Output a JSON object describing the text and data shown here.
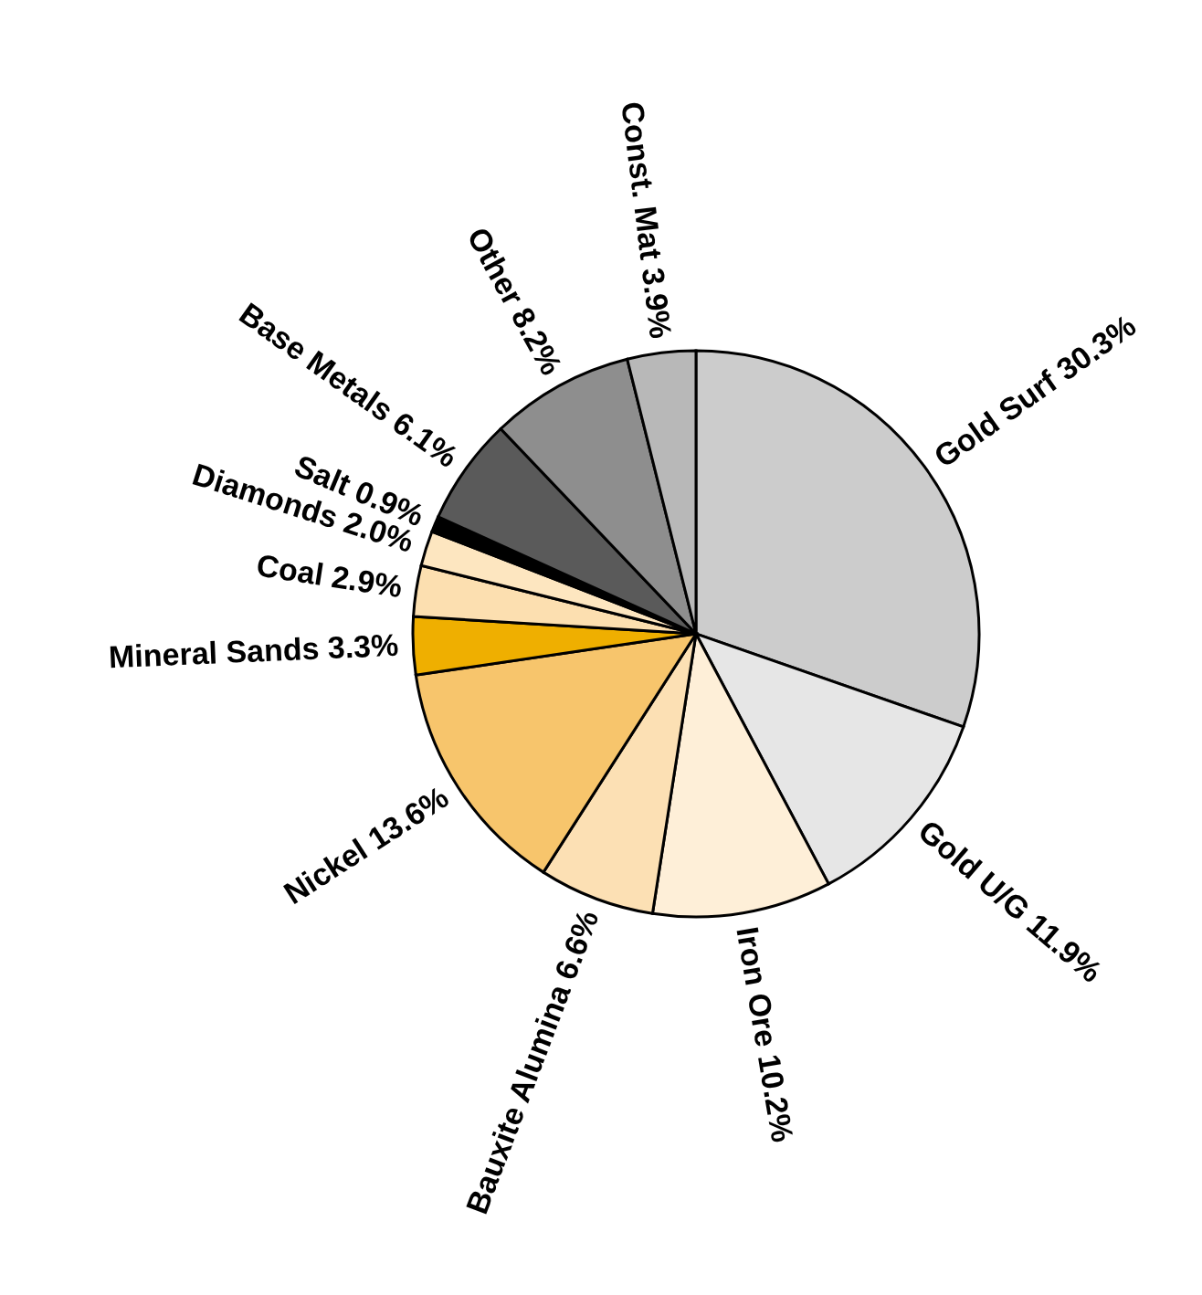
{
  "chart_data": {
    "type": "pie",
    "categories": [
      "Gold Surf",
      "Gold U/G",
      "Iron Ore",
      "Bauxite Alumina",
      "Nickel",
      "Mineral Sands",
      "Coal",
      "Diamonds",
      "Salt",
      "Base Metals",
      "Other",
      "Const. Mat"
    ],
    "values": [
      30.3,
      11.9,
      10.2,
      6.6,
      13.6,
      3.3,
      2.9,
      2.0,
      0.9,
      6.1,
      8.2,
      3.9
    ],
    "value_labels": [
      "30.3%",
      "11.9%",
      "10.2%",
      "6.6%",
      "13.6%",
      "3.3%",
      "2.9%",
      "2.0%",
      "0.9%",
      "6.1%",
      "8.2%",
      "3.9%"
    ],
    "colors": [
      "#cccccc",
      "#e6e6e6",
      "#feefd8",
      "#fce0b4",
      "#f7c56c",
      "#efaf00",
      "#fcdfb0",
      "#fde6c0",
      "#000000",
      "#5a5a5a",
      "#8e8e8e",
      "#b8b8b8"
    ]
  }
}
